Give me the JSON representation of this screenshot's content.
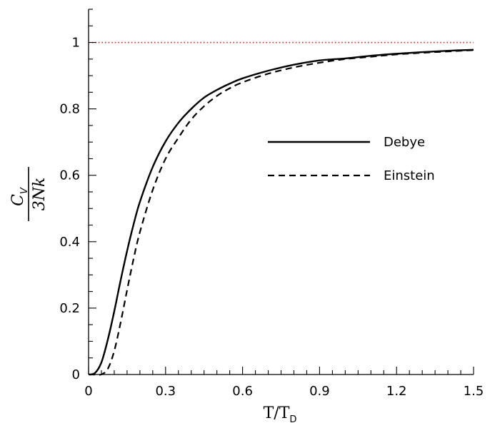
{
  "chart_data": {
    "type": "line",
    "x_range": [
      0,
      1.5
    ],
    "y_range": [
      0,
      1.1
    ],
    "x_ticks": [
      {
        "value": 0,
        "label": "0"
      },
      {
        "value": 0.3,
        "label": "0.3"
      },
      {
        "value": 0.6,
        "label": "0.6"
      },
      {
        "value": 0.9,
        "label": "0.9"
      },
      {
        "value": 1.2,
        "label": "1.2"
      },
      {
        "value": 1.5,
        "label": "1.5"
      }
    ],
    "y_ticks": [
      {
        "value": 0,
        "label": "0"
      },
      {
        "value": 0.2,
        "label": "0.2"
      },
      {
        "value": 0.4,
        "label": "0.4"
      },
      {
        "value": 0.6,
        "label": "0.6"
      },
      {
        "value": 0.8,
        "label": "0.8"
      },
      {
        "value": 1,
        "label": "1"
      }
    ],
    "xlabel": {
      "main": "T/T",
      "sub": "D"
    },
    "ylabel": {
      "numerator": "C",
      "numerator_sub": "V",
      "denominator": "3Nk"
    },
    "legend_position": "right-middle",
    "series": [
      {
        "name": "Debye",
        "style": "solid",
        "color": "#000000",
        "x": [
          0,
          0.025,
          0.05,
          0.075,
          0.1,
          0.125,
          0.15,
          0.175,
          0.2,
          0.25,
          0.3,
          0.35,
          0.4,
          0.45,
          0.5,
          0.55,
          0.6,
          0.7,
          0.8,
          0.9,
          1.0,
          1.1,
          1.2,
          1.3,
          1.4,
          1.5
        ],
        "y": [
          0,
          0.0046,
          0.0365,
          0.105,
          0.19,
          0.284,
          0.372,
          0.451,
          0.52,
          0.625,
          0.702,
          0.758,
          0.8,
          0.834,
          0.857,
          0.876,
          0.892,
          0.915,
          0.933,
          0.946,
          0.952,
          0.96,
          0.966,
          0.971,
          0.975,
          0.978
        ]
      },
      {
        "name": "Einstein",
        "style": "dashed",
        "color": "#000000",
        "x": [
          0,
          0.025,
          0.05,
          0.075,
          0.1,
          0.125,
          0.15,
          0.175,
          0.2,
          0.25,
          0.3,
          0.35,
          0.4,
          0.45,
          0.5,
          0.55,
          0.6,
          0.7,
          0.8,
          0.9,
          1.0,
          1.1,
          1.2,
          1.3,
          1.4,
          1.5
        ],
        "y": [
          0,
          0.0,
          0.0003,
          0.017,
          0.071,
          0.157,
          0.254,
          0.347,
          0.429,
          0.556,
          0.65,
          0.713,
          0.768,
          0.808,
          0.839,
          0.862,
          0.88,
          0.906,
          0.925,
          0.939,
          0.95,
          0.957,
          0.964,
          0.969,
          0.973,
          0.977
        ]
      }
    ],
    "reference_line": {
      "y": 1,
      "style": "dotted",
      "color": "#d62020"
    }
  }
}
